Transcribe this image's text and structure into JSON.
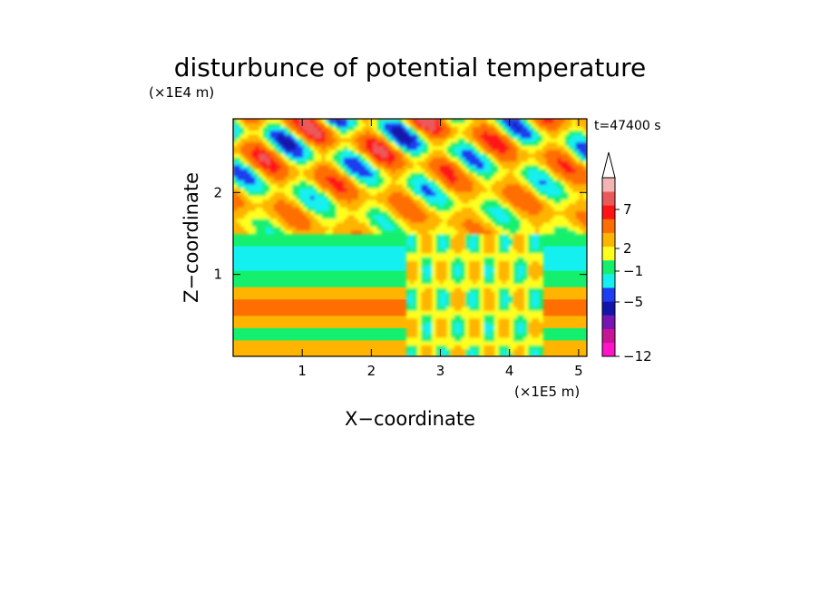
{
  "chart_data": {
    "type": "heatmap",
    "title": "disturbunce of potential temperature",
    "xlabel": "X−coordinate",
    "ylabel": "Z−coordinate",
    "x_unit": "(×1E5 m)",
    "y_unit": "(×1E4 m)",
    "time_label": "t=47400 s",
    "xlim": [
      0,
      5.12
    ],
    "ylim": [
      0,
      2.9
    ],
    "x_ticks": [
      "1",
      "2",
      "3",
      "4",
      "5"
    ],
    "y_ticks": [
      "1",
      "2"
    ],
    "colorbar": {
      "tick_labels": [
        "7",
        "2",
        "−1",
        "−5",
        "−12"
      ],
      "tick_values": [
        7,
        2,
        -1,
        -5,
        -12
      ],
      "colors": [
        "#ff14c8",
        "#c81496",
        "#7814b4",
        "#1414aa",
        "#1e3cf0",
        "#14f0f0",
        "#14f06e",
        "#ffff1e",
        "#ffb400",
        "#ff6e00",
        "#ff1414",
        "#eb5a5a",
        "#f5b4b4"
      ],
      "extend": "max"
    },
    "bands": [
      {
        "z": [
          0.0,
          0.2
        ],
        "value": 2
      },
      {
        "z": [
          0.2,
          0.35
        ],
        "value": 0.2
      },
      {
        "z": [
          0.35,
          0.5
        ],
        "value": 2.5
      },
      {
        "z": [
          0.5,
          0.7
        ],
        "value": 4
      },
      {
        "z": [
          0.7,
          0.85
        ],
        "value": 2
      },
      {
        "z": [
          0.85,
          1.05
        ],
        "value": 0.2
      },
      {
        "z": [
          1.05,
          1.35
        ],
        "value": -1.5
      },
      {
        "z": [
          1.35,
          1.55
        ],
        "value": 0.2
      },
      {
        "z": [
          1.55,
          1.8
        ],
        "value": 2
      },
      {
        "z": [
          1.8,
          2.05
        ],
        "value": 3.5
      },
      {
        "z": [
          2.05,
          2.3
        ],
        "value": 2
      },
      {
        "z": [
          2.3,
          2.6
        ],
        "value": 4
      },
      {
        "z": [
          2.6,
          2.9
        ],
        "value": 5
      }
    ]
  }
}
